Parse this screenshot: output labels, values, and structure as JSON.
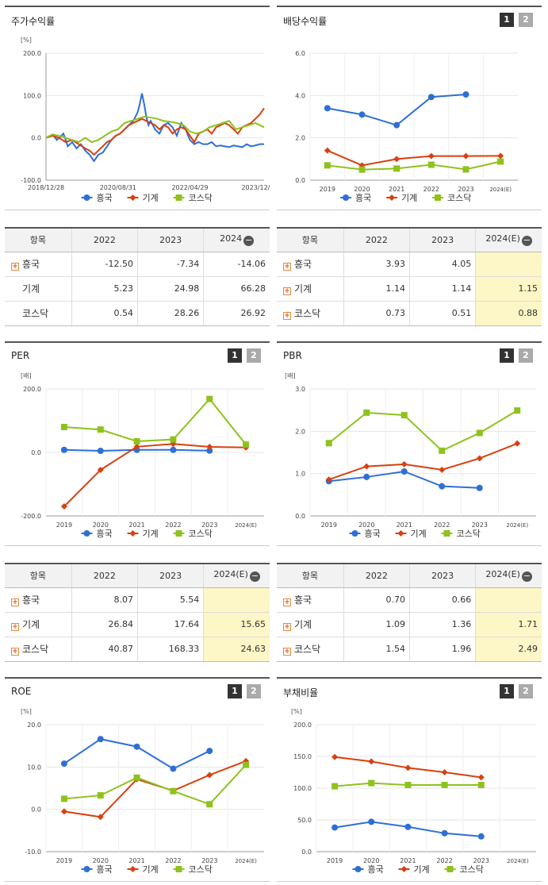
{
  "legend": [
    "흥국",
    "기계",
    "코스닥"
  ],
  "colors": {
    "s0": "#2e6fd6",
    "s1": "#d9400f",
    "s2": "#8ec21c"
  },
  "toggle": {
    "one": "1",
    "two": "2"
  },
  "panels": {
    "stock": {
      "title": "주가수익률",
      "table": {
        "header": [
          "항목",
          "2022",
          "2023",
          "2024"
        ],
        "rows": [
          {
            "name": "흥국",
            "values": [
              "-12.50",
              "-7.34",
              "-14.06"
            ]
          },
          {
            "name": "기계",
            "values": [
              "5.23",
              "24.98",
              "66.28"
            ]
          },
          {
            "name": "코스닥",
            "values": [
              "0.54",
              "28.26",
              "26.92"
            ]
          }
        ]
      }
    },
    "dividend": {
      "title": "배당수익률",
      "table": {
        "header": [
          "항목",
          "2022",
          "2023",
          "2024(E)"
        ],
        "rows": [
          {
            "name": "흥국",
            "values": [
              "3.93",
              "4.05",
              ""
            ]
          },
          {
            "name": "기계",
            "values": [
              "1.14",
              "1.14",
              "1.15"
            ]
          },
          {
            "name": "코스닥",
            "values": [
              "0.73",
              "0.51",
              "0.88"
            ]
          }
        ]
      }
    },
    "per": {
      "title": "PER",
      "table": {
        "header": [
          "항목",
          "2022",
          "2023",
          "2024(E)"
        ],
        "rows": [
          {
            "name": "흥국",
            "values": [
              "8.07",
              "5.54",
              ""
            ]
          },
          {
            "name": "기계",
            "values": [
              "26.84",
              "17.64",
              "15.65"
            ]
          },
          {
            "name": "코스닥",
            "values": [
              "40.87",
              "168.33",
              "24.63"
            ]
          }
        ]
      }
    },
    "pbr": {
      "title": "PBR",
      "table": {
        "header": [
          "항목",
          "2022",
          "2023",
          "2024(E)"
        ],
        "rows": [
          {
            "name": "흥국",
            "values": [
              "0.70",
              "0.66",
              ""
            ]
          },
          {
            "name": "기계",
            "values": [
              "1.09",
              "1.36",
              "1.71"
            ]
          },
          {
            "name": "코스닥",
            "values": [
              "1.54",
              "1.96",
              "2.49"
            ]
          }
        ]
      }
    },
    "roe": {
      "title": "ROE"
    },
    "debt": {
      "title": "부채비율"
    }
  },
  "chart_data": [
    {
      "id": "stock",
      "type": "line",
      "ylabel": "[%]",
      "ylim": [
        -100,
        200
      ],
      "yticks": [
        "200.0",
        "100.0",
        "0.0",
        "-100.0"
      ],
      "xticks": [
        "2018/12/28",
        "2020/08/31",
        "2022/04/29",
        "2023/12/28"
      ],
      "xrange": [
        0,
        100
      ],
      "xtick_pos": [
        0,
        33,
        66,
        98
      ],
      "series": [
        {
          "name": "흥국",
          "x": [
            0,
            3,
            5,
            8,
            10,
            12,
            14,
            16,
            18,
            20,
            22,
            24,
            26,
            28,
            30,
            32,
            34,
            36,
            38,
            40,
            42,
            43,
            44,
            45,
            46,
            47,
            48,
            50,
            52,
            54,
            56,
            58,
            60,
            62,
            64,
            66,
            68,
            70,
            72,
            74,
            76,
            78,
            80,
            82,
            84,
            86,
            88,
            90,
            92,
            94,
            96,
            98,
            100
          ],
          "y": [
            0,
            8,
            -5,
            10,
            -20,
            -10,
            -25,
            -15,
            -30,
            -40,
            -55,
            -40,
            -35,
            -20,
            -5,
            5,
            10,
            20,
            30,
            40,
            60,
            80,
            105,
            80,
            50,
            30,
            40,
            20,
            10,
            30,
            35,
            25,
            5,
            35,
            20,
            -5,
            -15,
            -10,
            -15,
            -15,
            -10,
            -20,
            -18,
            -20,
            -22,
            -18,
            -20,
            -22,
            -15,
            -20,
            -18,
            -15,
            -15
          ]
        },
        {
          "name": "기계",
          "x": [
            0,
            3,
            6,
            9,
            12,
            15,
            18,
            20,
            22,
            24,
            26,
            28,
            30,
            32,
            34,
            36,
            38,
            40,
            42,
            44,
            46,
            48,
            50,
            52,
            54,
            56,
            58,
            60,
            62,
            64,
            66,
            68,
            70,
            72,
            74,
            76,
            78,
            80,
            82,
            84,
            86,
            88,
            90,
            92,
            94,
            96,
            98,
            100
          ],
          "y": [
            0,
            5,
            0,
            -10,
            -5,
            -15,
            -25,
            -30,
            -40,
            -30,
            -20,
            -10,
            -5,
            5,
            10,
            20,
            30,
            35,
            40,
            45,
            40,
            35,
            30,
            20,
            30,
            25,
            10,
            20,
            25,
            20,
            5,
            -10,
            10,
            15,
            20,
            10,
            25,
            30,
            35,
            30,
            20,
            10,
            25,
            30,
            35,
            45,
            55,
            70
          ]
        },
        {
          "name": "코스닥",
          "x": [
            0,
            3,
            6,
            9,
            12,
            15,
            18,
            21,
            24,
            27,
            30,
            33,
            36,
            39,
            42,
            45,
            48,
            51,
            54,
            57,
            60,
            63,
            66,
            69,
            72,
            75,
            78,
            81,
            84,
            87,
            90,
            93,
            96,
            100
          ],
          "y": [
            0,
            8,
            5,
            0,
            -5,
            -10,
            0,
            -10,
            -5,
            5,
            15,
            20,
            35,
            40,
            45,
            50,
            48,
            45,
            40,
            38,
            35,
            30,
            15,
            10,
            15,
            25,
            30,
            35,
            40,
            20,
            25,
            30,
            35,
            25
          ]
        }
      ]
    },
    {
      "id": "dividend",
      "type": "line",
      "ylabel": "",
      "ylim": [
        0,
        6
      ],
      "yticks": [
        "6.0",
        "4.0",
        "2.0",
        "0.0"
      ],
      "categories": [
        "2019",
        "2020",
        "2021",
        "2022",
        "2023",
        "2024(E)"
      ],
      "series": [
        {
          "name": "흥국",
          "values": [
            3.4,
            3.1,
            2.6,
            3.93,
            4.05,
            null
          ]
        },
        {
          "name": "기계",
          "values": [
            1.4,
            0.7,
            1.0,
            1.14,
            1.14,
            1.15
          ]
        },
        {
          "name": "코스닥",
          "values": [
            0.7,
            0.5,
            0.55,
            0.73,
            0.51,
            0.88
          ]
        }
      ]
    },
    {
      "id": "per",
      "type": "line",
      "ylabel": "[배]",
      "ylim": [
        -200,
        200
      ],
      "yticks": [
        "200.0",
        "0.0",
        "-200.0"
      ],
      "categories": [
        "2019",
        "2020",
        "2021",
        "2022",
        "2023",
        "2024(E)"
      ],
      "series": [
        {
          "name": "흥국",
          "values": [
            8,
            5,
            8,
            8.07,
            5.54,
            null
          ]
        },
        {
          "name": "기계",
          "values": [
            -170,
            -55,
            18,
            26.84,
            17.64,
            15.65
          ]
        },
        {
          "name": "코스닥",
          "values": [
            80,
            72,
            35,
            40.87,
            168.33,
            24.63
          ]
        }
      ]
    },
    {
      "id": "pbr",
      "type": "line",
      "ylabel": "[배]",
      "ylim": [
        0,
        3
      ],
      "yticks": [
        "3.0",
        "2.0",
        "1.0",
        "0.0"
      ],
      "categories": [
        "2019",
        "2020",
        "2021",
        "2022",
        "2023",
        "2024(E)"
      ],
      "series": [
        {
          "name": "흥국",
          "values": [
            0.82,
            0.92,
            1.05,
            0.7,
            0.66,
            null
          ]
        },
        {
          "name": "기계",
          "values": [
            0.86,
            1.17,
            1.22,
            1.09,
            1.36,
            1.71
          ]
        },
        {
          "name": "코스닥",
          "values": [
            1.72,
            2.44,
            2.38,
            1.54,
            1.96,
            2.49
          ]
        }
      ]
    },
    {
      "id": "roe",
      "type": "line",
      "ylabel": "[%]",
      "ylim": [
        -10,
        20
      ],
      "yticks": [
        "20.0",
        "10.0",
        "0.0",
        "-10.0"
      ],
      "categories": [
        "2019",
        "2020",
        "2021",
        "2022",
        "2023",
        "2024(E)"
      ],
      "series": [
        {
          "name": "흥국",
          "values": [
            10.8,
            16.6,
            14.8,
            9.6,
            13.8,
            null
          ]
        },
        {
          "name": "기계",
          "values": [
            -0.5,
            -1.8,
            7.1,
            4.4,
            8.1,
            11.4
          ]
        },
        {
          "name": "코스닥",
          "values": [
            2.5,
            3.3,
            7.5,
            4.3,
            1.2,
            10.5
          ]
        }
      ]
    },
    {
      "id": "debt",
      "type": "line",
      "ylabel": "[%]",
      "ylim": [
        0,
        200
      ],
      "yticks": [
        "200.0",
        "150.0",
        "100.0",
        "50.0",
        "0.0"
      ],
      "categories": [
        "2019",
        "2020",
        "2021",
        "2022",
        "2023",
        "2024(E)"
      ],
      "series": [
        {
          "name": "흥국",
          "values": [
            38,
            47,
            39,
            29,
            24,
            null
          ]
        },
        {
          "name": "기계",
          "values": [
            149,
            142,
            132,
            125,
            117,
            null
          ]
        },
        {
          "name": "코스닥",
          "values": [
            103,
            108,
            105,
            105,
            105,
            null
          ]
        }
      ]
    }
  ]
}
